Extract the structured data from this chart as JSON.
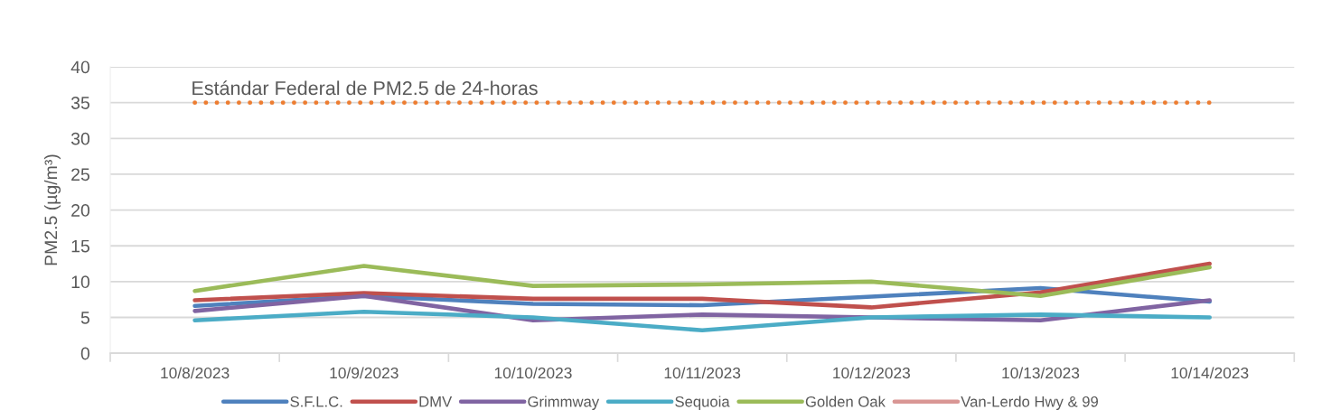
{
  "chart_data": {
    "type": "line",
    "ylabel": "PM2.5 (µg/m³)",
    "categories": [
      "10/8/2023",
      "10/9/2023",
      "10/10/2023",
      "10/11/2023",
      "10/12/2023",
      "10/13/2023",
      "10/14/2023"
    ],
    "series": [
      {
        "name": "S.F.L.C.",
        "color": "#4f81bd",
        "values": [
          6.6,
          8.0,
          6.9,
          6.7,
          7.9,
          9.1,
          7.2
        ]
      },
      {
        "name": "DMV",
        "color": "#c0504d",
        "values": [
          7.4,
          8.4,
          7.6,
          7.6,
          6.4,
          8.5,
          12.5
        ]
      },
      {
        "name": "Grimmway",
        "color": "#8064a2",
        "values": [
          5.9,
          8.0,
          4.6,
          5.4,
          5.0,
          4.6,
          7.4
        ]
      },
      {
        "name": "Sequoia",
        "color": "#4bacc6",
        "values": [
          4.6,
          5.8,
          5.0,
          3.2,
          5.0,
          5.4,
          5.0
        ]
      },
      {
        "name": "Golden Oak",
        "color": "#9bbb59",
        "values": [
          8.7,
          12.2,
          9.4,
          9.6,
          10.0,
          8.0,
          12.0
        ]
      },
      {
        "name": "Van-Lerdo Hwy & 99",
        "color": "#d99694",
        "values": [
          null,
          null,
          null,
          null,
          null,
          null,
          null
        ]
      },
      {
        "color": "#ed7d31",
        "line_style": "dotted",
        "values": [
          35,
          35,
          35,
          35,
          35,
          35,
          35
        ]
      }
    ],
    "annotations": [
      {
        "text": "Estándar Federal de PM2.5 de 24-horas",
        "x": "10/8/2023",
        "y": 35
      }
    ],
    "ylim": [
      0,
      40
    ],
    "yticks": [
      0,
      5,
      10,
      15,
      20,
      25,
      30,
      35,
      40
    ],
    "grid": "y",
    "legend": "bottom",
    "line_style": "solid",
    "marker": "none"
  }
}
